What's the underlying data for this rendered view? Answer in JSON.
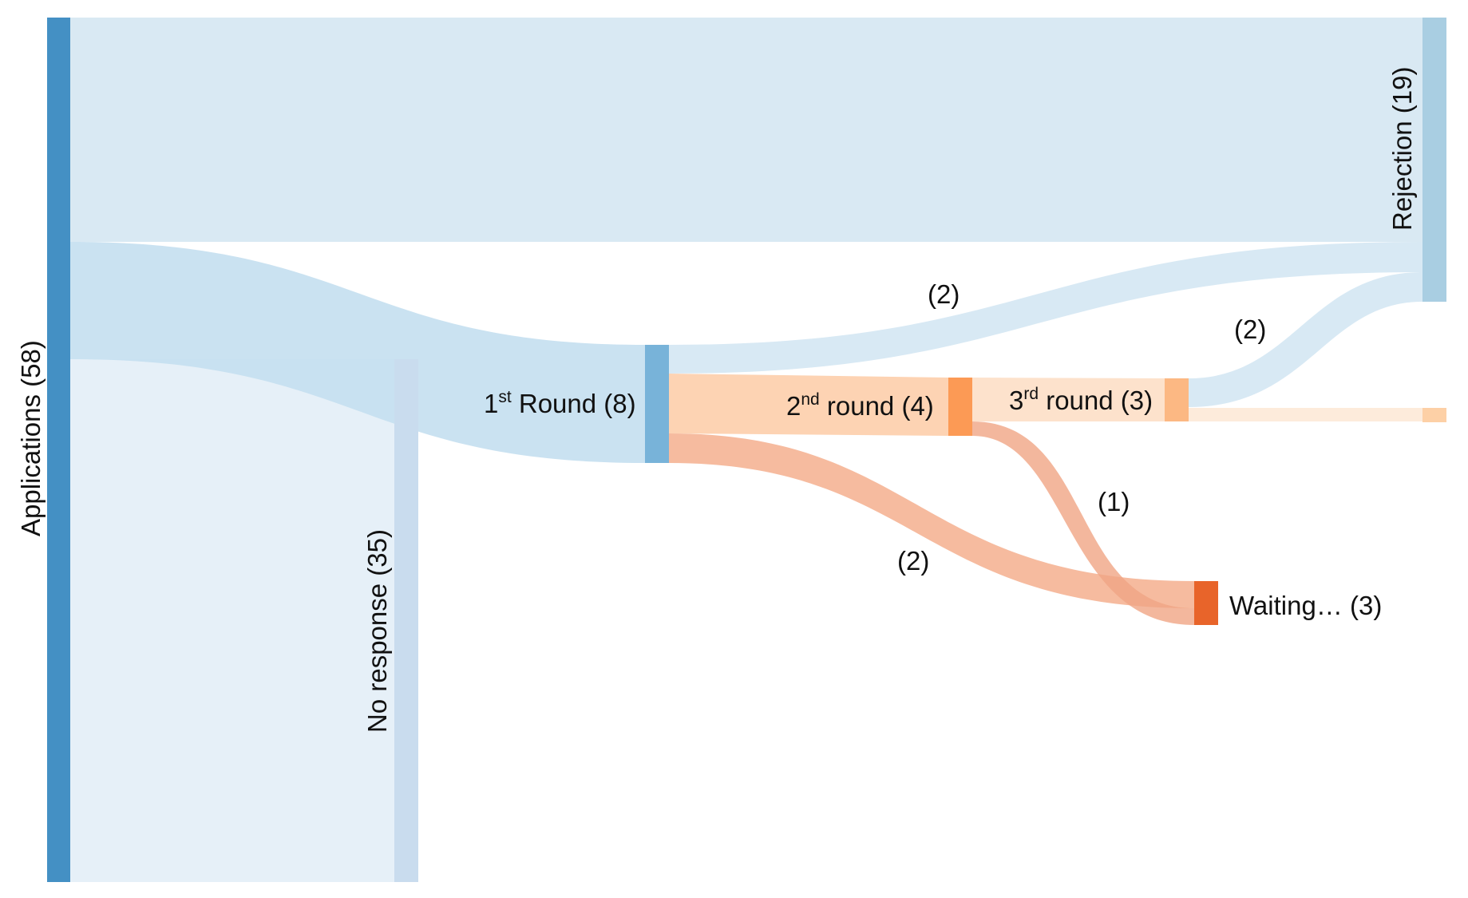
{
  "nodes": {
    "applications": {
      "label": "Applications (58)",
      "color": "#4490c4"
    },
    "no_response": {
      "label": "No response (35)",
      "color": "#c9dcee"
    },
    "rejection": {
      "label": "Rejection (19)",
      "color": "#a9cee2"
    },
    "round1": {
      "label_pre": "1",
      "label_sup": "st",
      "label_post": " Round (8)",
      "color": "#78b3d9"
    },
    "round2": {
      "label_pre": "2",
      "label_sup": "nd",
      "label_post": " round (4)",
      "color": "#fc9a55"
    },
    "round3": {
      "label_pre": "3",
      "label_sup": "rd",
      "label_post": " round (3)",
      "color": "#fcb883"
    },
    "offer": {
      "color": "#fdd0a6"
    },
    "waiting": {
      "label": "Waiting… (3)",
      "color": "#e8642a"
    }
  },
  "flows": [
    {
      "from": "Applications",
      "to": "Rejection",
      "value": 15,
      "color": "#d9e9f3"
    },
    {
      "from": "Applications",
      "to": "1st Round",
      "value": 8,
      "color": "#c4dff0"
    },
    {
      "from": "Applications",
      "to": "No response",
      "value": 35,
      "color": "#e6f0f8"
    },
    {
      "from": "1st Round",
      "to": "Rejection",
      "value": 2,
      "label": "(2)",
      "color": "#d8e9f4"
    },
    {
      "from": "1st Round",
      "to": "2nd round",
      "value": 4,
      "color": "#fdd3b3"
    },
    {
      "from": "1st Round",
      "to": "Waiting…",
      "value": 2,
      "label": "(2)",
      "color": "#f6bb9f"
    },
    {
      "from": "2nd round",
      "to": "3rd round",
      "value": 3,
      "color": "#fde2cc"
    },
    {
      "from": "2nd round",
      "to": "Waiting…",
      "value": 1,
      "label": "(1)",
      "color": "#f4b79e"
    },
    {
      "from": "3rd round",
      "to": "Rejection",
      "value": 2,
      "label": "(2)",
      "color": "#d8e9f4"
    },
    {
      "from": "3rd round",
      "to": "Offer",
      "value": 1,
      "color": "#fdebdb"
    }
  ]
}
